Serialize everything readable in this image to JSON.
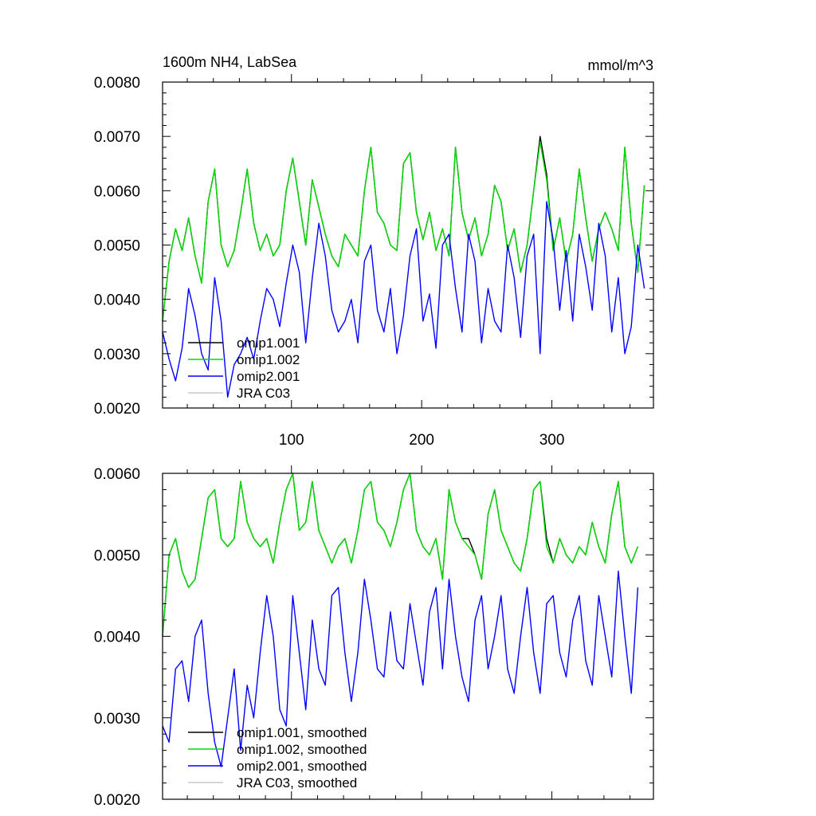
{
  "chart_data": [
    {
      "type": "line",
      "title": "1600m NH4, LabSea",
      "units": "mmol/m^3",
      "xlabel": "",
      "ylabel": "",
      "xlim": [
        1,
        378
      ],
      "ylim": [
        0.002,
        0.008
      ],
      "x_ticks": [
        100,
        200,
        300
      ],
      "x_tick_labels": [
        "100",
        "200",
        "300"
      ],
      "y_ticks": [
        0.002,
        0.003,
        0.004,
        0.005,
        0.006,
        0.007,
        0.008
      ],
      "y_tick_labels": [
        "0.0020",
        "0.0030",
        "0.0040",
        "0.0050",
        "0.0060",
        "0.0070",
        "0.0080"
      ],
      "grid": false,
      "legend_position": "bottom-left",
      "series": [
        {
          "name": "omip1.001",
          "color": "#000000",
          "x": [
            1,
            6,
            11,
            16,
            21,
            26,
            31,
            36,
            41,
            46,
            51,
            56,
            61,
            66,
            71,
            76,
            81,
            86,
            91,
            96,
            101,
            106,
            111,
            116,
            121,
            126,
            131,
            136,
            141,
            146,
            151,
            156,
            161,
            166,
            171,
            176,
            181,
            186,
            191,
            196,
            201,
            206,
            211,
            216,
            221,
            226,
            231,
            236,
            241,
            246,
            251,
            256,
            261,
            266,
            271,
            276,
            281,
            286,
            291,
            296,
            301,
            306,
            311,
            316,
            321,
            326,
            331,
            336,
            341,
            346,
            351,
            356,
            361,
            366,
            371
          ],
          "y": [
            0.0036,
            0.0047,
            0.0053,
            0.0049,
            0.0055,
            0.0048,
            0.0043,
            0.0058,
            0.0064,
            0.005,
            0.0046,
            0.0049,
            0.0056,
            0.0064,
            0.0054,
            0.0049,
            0.0052,
            0.0048,
            0.005,
            0.006,
            0.0066,
            0.0058,
            0.005,
            0.0062,
            0.0057,
            0.0052,
            0.0048,
            0.0046,
            0.0052,
            0.005,
            0.0048,
            0.006,
            0.0068,
            0.0056,
            0.0054,
            0.005,
            0.0049,
            0.0065,
            0.0067,
            0.0056,
            0.0051,
            0.0056,
            0.0049,
            0.0053,
            0.0048,
            0.0068,
            0.0056,
            0.0051,
            0.0055,
            0.0048,
            0.0052,
            0.0061,
            0.0058,
            0.0049,
            0.0053,
            0.0045,
            0.005,
            0.006,
            0.007,
            0.0063,
            0.0049,
            0.0055,
            0.0047,
            0.0052,
            0.0064,
            0.0055,
            0.0047,
            0.0053,
            0.0056,
            0.0053,
            0.0049,
            0.0068,
            0.0054,
            0.0045,
            0.0061
          ]
        },
        {
          "name": "omip1.002",
          "color": "#00dd00",
          "x": [
            1,
            6,
            11,
            16,
            21,
            26,
            31,
            36,
            41,
            46,
            51,
            56,
            61,
            66,
            71,
            76,
            81,
            86,
            91,
            96,
            101,
            106,
            111,
            116,
            121,
            126,
            131,
            136,
            141,
            146,
            151,
            156,
            161,
            166,
            171,
            176,
            181,
            186,
            191,
            196,
            201,
            206,
            211,
            216,
            221,
            226,
            231,
            236,
            241,
            246,
            251,
            256,
            261,
            266,
            271,
            276,
            281,
            286,
            291,
            296,
            301,
            306,
            311,
            316,
            321,
            326,
            331,
            336,
            341,
            346,
            351,
            356,
            361,
            366,
            371
          ],
          "y": [
            0.0036,
            0.0047,
            0.0053,
            0.0049,
            0.0055,
            0.0048,
            0.0043,
            0.0058,
            0.0064,
            0.005,
            0.0046,
            0.0049,
            0.0056,
            0.0064,
            0.0054,
            0.0049,
            0.0052,
            0.0048,
            0.005,
            0.006,
            0.0066,
            0.0058,
            0.005,
            0.0062,
            0.0057,
            0.0052,
            0.0048,
            0.0046,
            0.0052,
            0.005,
            0.0048,
            0.006,
            0.0068,
            0.0056,
            0.0054,
            0.005,
            0.0049,
            0.0065,
            0.0067,
            0.0056,
            0.0051,
            0.0056,
            0.0049,
            0.0053,
            0.0048,
            0.0068,
            0.0056,
            0.0051,
            0.0055,
            0.0048,
            0.0052,
            0.0061,
            0.0058,
            0.0049,
            0.0053,
            0.0045,
            0.005,
            0.006,
            0.0069,
            0.0062,
            0.0049,
            0.0055,
            0.0047,
            0.0052,
            0.0064,
            0.0055,
            0.0047,
            0.0053,
            0.0056,
            0.0053,
            0.0049,
            0.0068,
            0.0054,
            0.0045,
            0.0061
          ]
        },
        {
          "name": "omip2.001",
          "color": "#0000ff",
          "x": [
            1,
            6,
            11,
            16,
            21,
            26,
            31,
            36,
            41,
            46,
            51,
            56,
            61,
            66,
            71,
            76,
            81,
            86,
            91,
            96,
            101,
            106,
            111,
            116,
            121,
            126,
            131,
            136,
            141,
            146,
            151,
            156,
            161,
            166,
            171,
            176,
            181,
            186,
            191,
            196,
            201,
            206,
            211,
            216,
            221,
            226,
            231,
            236,
            241,
            246,
            251,
            256,
            261,
            266,
            271,
            276,
            281,
            286,
            291,
            296,
            301,
            306,
            311,
            316,
            321,
            326,
            331,
            336,
            341,
            346,
            351,
            356,
            361,
            366,
            371
          ],
          "y": [
            0.0034,
            0.0029,
            0.0025,
            0.0031,
            0.0042,
            0.0037,
            0.003,
            0.0027,
            0.0044,
            0.0036,
            0.0022,
            0.0028,
            0.003,
            0.0033,
            0.0029,
            0.0036,
            0.0042,
            0.004,
            0.0035,
            0.0043,
            0.005,
            0.0045,
            0.0032,
            0.0044,
            0.0054,
            0.0048,
            0.0038,
            0.0034,
            0.0036,
            0.004,
            0.0032,
            0.0047,
            0.005,
            0.0038,
            0.0034,
            0.0042,
            0.003,
            0.0037,
            0.0048,
            0.0053,
            0.0036,
            0.0041,
            0.0031,
            0.005,
            0.0052,
            0.0042,
            0.0034,
            0.0052,
            0.0047,
            0.0032,
            0.0042,
            0.0036,
            0.0034,
            0.005,
            0.0044,
            0.0033,
            0.0048,
            0.0052,
            0.003,
            0.0058,
            0.0051,
            0.0038,
            0.0049,
            0.0036,
            0.0052,
            0.0046,
            0.0038,
            0.0054,
            0.0048,
            0.0034,
            0.0044,
            0.003,
            0.0035,
            0.005,
            0.0042
          ]
        },
        {
          "name": "JRA C03",
          "color": "#c8c8c8",
          "x": [],
          "y": []
        }
      ]
    },
    {
      "type": "line",
      "title": "",
      "xlabel": "",
      "ylabel": "",
      "xlim": [
        1,
        378
      ],
      "ylim": [
        0.002,
        0.006
      ],
      "x_ticks": [
        100,
        200,
        300
      ],
      "x_tick_labels": [],
      "y_ticks": [
        0.002,
        0.003,
        0.004,
        0.005,
        0.006
      ],
      "y_tick_labels": [
        "0.0020",
        "0.0030",
        "0.0040",
        "0.0050",
        "0.0060"
      ],
      "grid": false,
      "legend_position": "bottom-left",
      "series": [
        {
          "name": "omip1.001, smoothed",
          "color": "#000000",
          "x": [
            1,
            6,
            11,
            16,
            21,
            26,
            31,
            36,
            41,
            46,
            51,
            56,
            61,
            66,
            71,
            76,
            81,
            86,
            91,
            96,
            101,
            106,
            111,
            116,
            121,
            126,
            131,
            136,
            141,
            146,
            151,
            156,
            161,
            166,
            171,
            176,
            181,
            186,
            191,
            196,
            201,
            206,
            211,
            216,
            221,
            226,
            231,
            236,
            241,
            246,
            251,
            256,
            261,
            266,
            271,
            276,
            281,
            286,
            291,
            296,
            301,
            306,
            311,
            316,
            321,
            326,
            331,
            336,
            341,
            346,
            351,
            356,
            361,
            366
          ],
          "y": [
            0.004,
            0.005,
            0.0052,
            0.0048,
            0.0046,
            0.0047,
            0.0052,
            0.0057,
            0.0058,
            0.0052,
            0.0051,
            0.0052,
            0.0059,
            0.0054,
            0.0052,
            0.0051,
            0.0052,
            0.0049,
            0.0054,
            0.0058,
            0.006,
            0.0053,
            0.0054,
            0.0059,
            0.0053,
            0.0051,
            0.0049,
            0.0051,
            0.0052,
            0.0049,
            0.0053,
            0.0058,
            0.0059,
            0.0054,
            0.0053,
            0.0051,
            0.0054,
            0.0058,
            0.006,
            0.0053,
            0.0051,
            0.005,
            0.0052,
            0.0047,
            0.0058,
            0.0054,
            0.0052,
            0.0052,
            0.005,
            0.0047,
            0.0055,
            0.0058,
            0.0053,
            0.0051,
            0.0049,
            0.0048,
            0.0052,
            0.0058,
            0.0059,
            0.0052,
            0.0049,
            0.0052,
            0.005,
            0.0049,
            0.0051,
            0.005,
            0.0054,
            0.0051,
            0.0049,
            0.0055,
            0.0059,
            0.0051,
            0.0049,
            0.0051
          ]
        },
        {
          "name": "omip1.002, smoothed",
          "color": "#00dd00",
          "x": [
            1,
            6,
            11,
            16,
            21,
            26,
            31,
            36,
            41,
            46,
            51,
            56,
            61,
            66,
            71,
            76,
            81,
            86,
            91,
            96,
            101,
            106,
            111,
            116,
            121,
            126,
            131,
            136,
            141,
            146,
            151,
            156,
            161,
            166,
            171,
            176,
            181,
            186,
            191,
            196,
            201,
            206,
            211,
            216,
            221,
            226,
            231,
            236,
            241,
            246,
            251,
            256,
            261,
            266,
            271,
            276,
            281,
            286,
            291,
            296,
            301,
            306,
            311,
            316,
            321,
            326,
            331,
            336,
            341,
            346,
            351,
            356,
            361,
            366
          ],
          "y": [
            0.004,
            0.005,
            0.0052,
            0.0048,
            0.0046,
            0.0047,
            0.0052,
            0.0057,
            0.0058,
            0.0052,
            0.0051,
            0.0052,
            0.0059,
            0.0054,
            0.0052,
            0.0051,
            0.0052,
            0.0049,
            0.0054,
            0.0058,
            0.006,
            0.0053,
            0.0054,
            0.0059,
            0.0053,
            0.0051,
            0.0049,
            0.0051,
            0.0052,
            0.0049,
            0.0053,
            0.0058,
            0.0059,
            0.0054,
            0.0053,
            0.0051,
            0.0054,
            0.0058,
            0.006,
            0.0053,
            0.0051,
            0.005,
            0.0052,
            0.0047,
            0.0058,
            0.0054,
            0.0052,
            0.0051,
            0.005,
            0.0047,
            0.0055,
            0.0058,
            0.0053,
            0.0051,
            0.0049,
            0.0048,
            0.0052,
            0.0058,
            0.0059,
            0.0051,
            0.0049,
            0.0052,
            0.005,
            0.0049,
            0.0051,
            0.005,
            0.0054,
            0.0051,
            0.0049,
            0.0055,
            0.0059,
            0.0051,
            0.0049,
            0.0051
          ]
        },
        {
          "name": "omip2.001, smoothed",
          "color": "#0000ff",
          "x": [
            1,
            6,
            11,
            16,
            21,
            26,
            31,
            36,
            41,
            46,
            51,
            56,
            61,
            66,
            71,
            76,
            81,
            86,
            91,
            96,
            101,
            106,
            111,
            116,
            121,
            126,
            131,
            136,
            141,
            146,
            151,
            156,
            161,
            166,
            171,
            176,
            181,
            186,
            191,
            196,
            201,
            206,
            211,
            216,
            221,
            226,
            231,
            236,
            241,
            246,
            251,
            256,
            261,
            266,
            271,
            276,
            281,
            286,
            291,
            296,
            301,
            306,
            311,
            316,
            321,
            326,
            331,
            336,
            341,
            346,
            351,
            356,
            361,
            366
          ],
          "y": [
            0.0029,
            0.0027,
            0.0036,
            0.0037,
            0.0032,
            0.004,
            0.0042,
            0.0033,
            0.0027,
            0.0024,
            0.003,
            0.0036,
            0.0026,
            0.0034,
            0.003,
            0.0038,
            0.0045,
            0.004,
            0.0031,
            0.0029,
            0.0045,
            0.0038,
            0.0031,
            0.0042,
            0.0036,
            0.0034,
            0.0045,
            0.0046,
            0.0038,
            0.0032,
            0.0038,
            0.0047,
            0.0042,
            0.0036,
            0.0035,
            0.0043,
            0.0037,
            0.0036,
            0.0044,
            0.0039,
            0.0034,
            0.0043,
            0.0046,
            0.0036,
            0.0047,
            0.004,
            0.0035,
            0.0032,
            0.0042,
            0.0045,
            0.0036,
            0.004,
            0.0045,
            0.0036,
            0.0033,
            0.004,
            0.0046,
            0.0038,
            0.0033,
            0.0044,
            0.0045,
            0.0038,
            0.0035,
            0.0042,
            0.0045,
            0.0037,
            0.0034,
            0.0045,
            0.004,
            0.0035,
            0.0048,
            0.004,
            0.0033,
            0.0046
          ]
        },
        {
          "name": "JRA C03, smoothed",
          "color": "#c8c8c8",
          "x": [],
          "y": []
        }
      ]
    }
  ]
}
